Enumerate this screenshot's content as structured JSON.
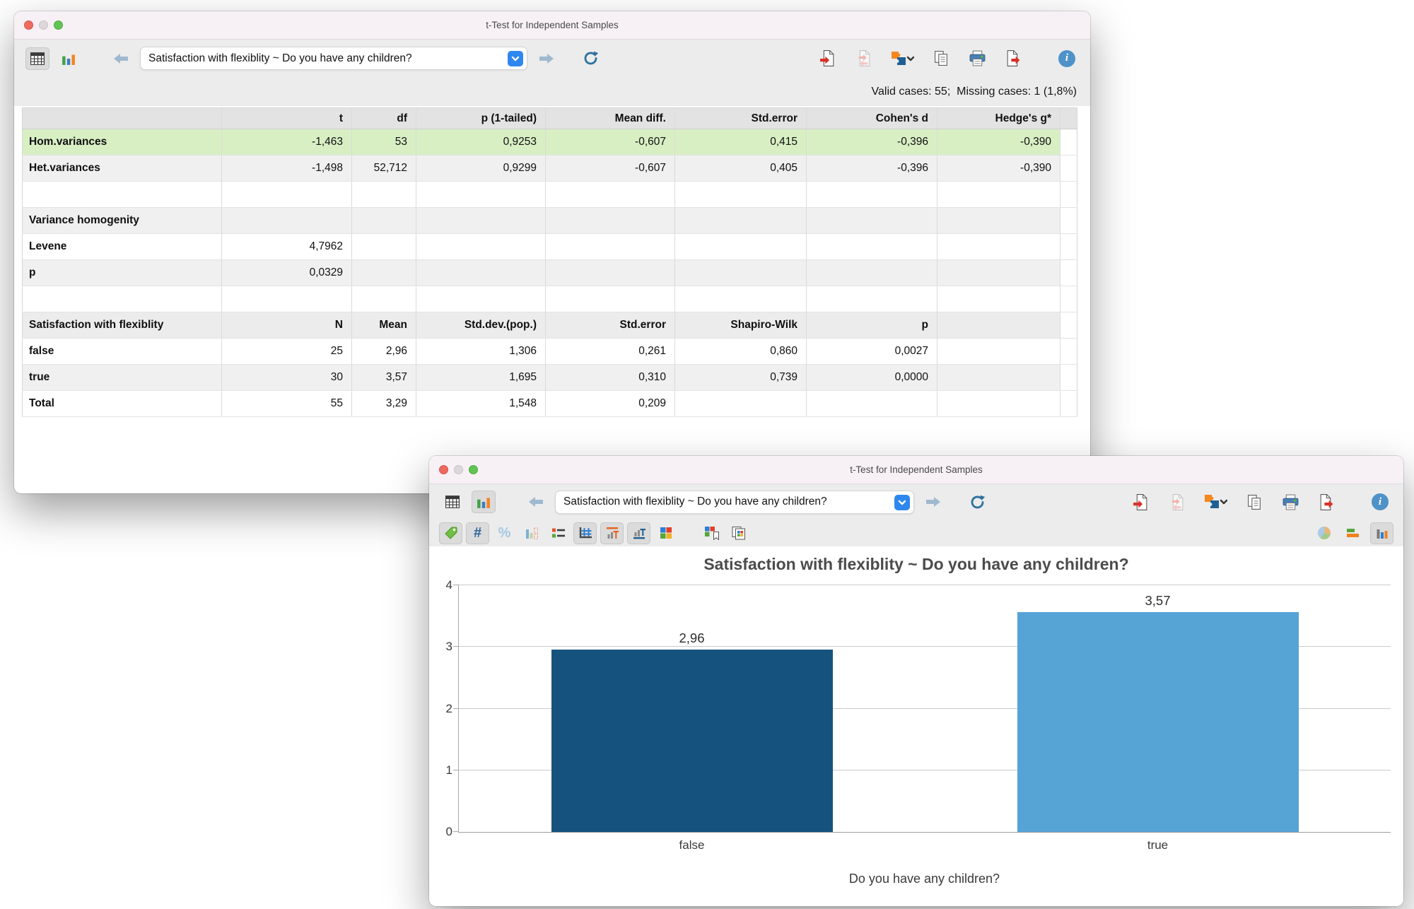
{
  "icons": {
    "hash": "#",
    "percent": "%",
    "info": "i"
  },
  "back_window": {
    "title": "t-Test for Independent Samples",
    "toolbar": {
      "combo_value": "Satisfaction with flexiblity ~ Do you have any children?"
    },
    "status": "Valid cases: 55;  Missing cases: 1 (1,8%)",
    "table": {
      "rows": [
        {
          "kind": "header",
          "cells": [
            "",
            "t",
            "df",
            "p (1-tailed)",
            "Mean diff.",
            "Std.error",
            "Cohen's d",
            "Hedge's g*"
          ]
        },
        {
          "kind": "data",
          "bg": "green",
          "cells": [
            "Hom.variances",
            "-1,463",
            "53",
            "0,9253",
            "-0,607",
            "0,415",
            "-0,396",
            "-0,390"
          ]
        },
        {
          "kind": "data",
          "bg": "stripe",
          "cells": [
            "Het.variances",
            "-1,498",
            "52,712",
            "0,9299",
            "-0,607",
            "0,405",
            "-0,396",
            "-0,390"
          ]
        },
        {
          "kind": "data",
          "bg": "white",
          "cells": [
            "",
            "",
            "",
            "",
            "",
            "",
            "",
            ""
          ]
        },
        {
          "kind": "data",
          "bg": "stripe",
          "cells": [
            "Variance homogenity",
            "",
            "",
            "",
            "",
            "",
            "",
            ""
          ]
        },
        {
          "kind": "data",
          "bg": "white",
          "cells": [
            "Levene",
            "4,7962",
            "",
            "",
            "",
            "",
            "",
            ""
          ]
        },
        {
          "kind": "data",
          "bg": "stripe",
          "cells": [
            "p",
            "0,0329",
            "",
            "",
            "",
            "",
            "",
            ""
          ]
        },
        {
          "kind": "data",
          "bg": "white",
          "cells": [
            "",
            "",
            "",
            "",
            "",
            "",
            "",
            ""
          ]
        },
        {
          "kind": "subheader",
          "cells": [
            "Satisfaction with flexiblity",
            "N",
            "Mean",
            "Std.dev.(pop.)",
            "Std.error",
            "Shapiro-Wilk",
            "p",
            ""
          ]
        },
        {
          "kind": "data",
          "bg": "white",
          "cells": [
            "false",
            "25",
            "2,96",
            "1,306",
            "0,261",
            "0,860",
            "0,0027",
            ""
          ]
        },
        {
          "kind": "data",
          "bg": "stripe",
          "cells": [
            "true",
            "30",
            "3,57",
            "1,695",
            "0,310",
            "0,739",
            "0,0000",
            ""
          ]
        },
        {
          "kind": "data",
          "bg": "white",
          "cells": [
            "Total",
            "55",
            "3,29",
            "1,548",
            "0,209",
            "",
            "",
            ""
          ]
        }
      ]
    }
  },
  "front_window": {
    "title": "t-Test for Independent Samples",
    "toolbar": {
      "combo_value": "Satisfaction with flexiblity ~ Do you have any children?"
    }
  },
  "chart_data": {
    "type": "bar",
    "title": "Satisfaction with flexiblity ~ Do you have any children?",
    "xlabel": "Do you have any children?",
    "ylabel": "",
    "categories": [
      "false",
      "true"
    ],
    "values": [
      2.96,
      3.57
    ],
    "value_labels": [
      "2,96",
      "3,57"
    ],
    "bar_colors": [
      "#15537e",
      "#56a3d6"
    ],
    "ylim": [
      0,
      4
    ],
    "yticks": [
      0,
      1,
      2,
      3,
      4
    ],
    "grid": true,
    "legend": false
  }
}
